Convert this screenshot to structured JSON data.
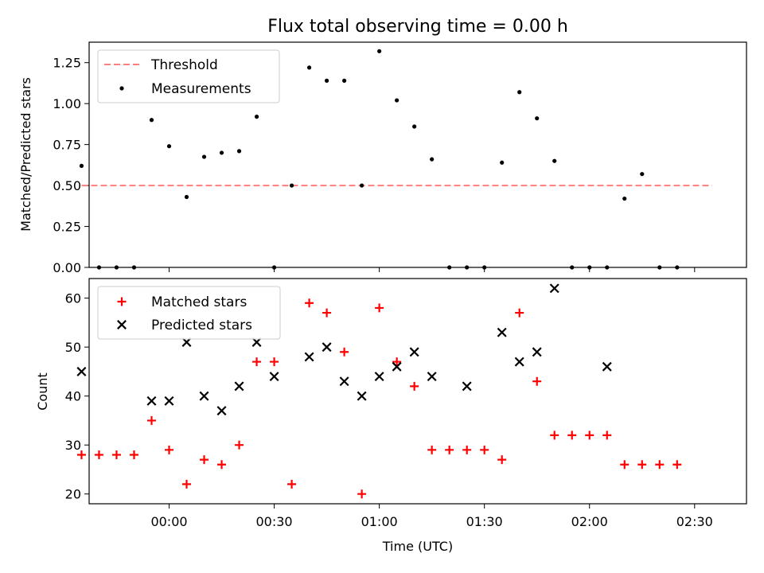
{
  "title": "Flux total observing time = 0.00 h",
  "chart_data": [
    {
      "type": "scatter",
      "ylabel": "Matched/Predicted stars",
      "ylim": [
        0,
        1.375
      ],
      "yticks": [
        "0.00",
        "0.25",
        "0.50",
        "0.75",
        "1.00",
        "1.25"
      ],
      "legend": {
        "placement": "upper-left",
        "entries": [
          "Threshold",
          "Measurements"
        ]
      },
      "threshold": {
        "name": "Threshold",
        "value": 0.5,
        "x_start": "23:35",
        "x_end": "02:35",
        "color": "#ff7f7f"
      },
      "series": [
        {
          "name": "Measurements",
          "marker": "dot",
          "color": "#000000",
          "x": [
            "23:35",
            "23:40",
            "23:45",
            "23:50",
            "23:55",
            "00:00",
            "00:05",
            "00:10",
            "00:15",
            "00:20",
            "00:25",
            "00:30",
            "00:35",
            "00:40",
            "00:45",
            "00:50",
            "00:55",
            "01:00",
            "01:05",
            "01:10",
            "01:15",
            "01:20",
            "01:25",
            "01:30",
            "01:35",
            "01:40",
            "01:45",
            "01:50",
            "01:55",
            "02:00",
            "02:05",
            "02:10",
            "02:15",
            "02:20",
            "02:25",
            "02:30",
            "02:35"
          ],
          "y": [
            0.62,
            0.0,
            0.0,
            0.0,
            0.9,
            0.74,
            0.43,
            0.675,
            0.7,
            0.71,
            0.92,
            0.0,
            0.5,
            1.22,
            1.14,
            1.14,
            0.5,
            1.32,
            1.02,
            0.86,
            0.66,
            0.0,
            0.0,
            0.0,
            0.64,
            1.07,
            0.91,
            0.65,
            0.0,
            0.0,
            0.0,
            0.42,
            0.57,
            0.0,
            0.0,
            null,
            null
          ]
        }
      ]
    },
    {
      "type": "scatter",
      "xlabel": "Time (UTC)",
      "ylabel": "Count",
      "ylim": [
        18,
        64
      ],
      "yticks": [
        "20",
        "30",
        "40",
        "50",
        "60"
      ],
      "xticks": [
        "00:00",
        "00:30",
        "01:00",
        "01:30",
        "02:00",
        "02:30"
      ],
      "legend": {
        "placement": "upper-left",
        "entries": [
          "Matched stars",
          "Predicted stars"
        ]
      },
      "series": [
        {
          "name": "Matched stars",
          "marker": "plus",
          "color": "#ff0000",
          "x": [
            "23:35",
            "23:40",
            "23:45",
            "23:50",
            "23:55",
            "00:00",
            "00:05",
            "00:10",
            "00:15",
            "00:20",
            "00:25",
            "00:30",
            "00:35",
            "00:40",
            "00:45",
            "00:50",
            "00:55",
            "01:00",
            "01:05",
            "01:10",
            "01:15",
            "01:20",
            "01:25",
            "01:30",
            "01:35",
            "01:40",
            "01:45",
            "01:50",
            "01:55",
            "02:00",
            "02:05",
            "02:10",
            "02:15",
            "02:20",
            "02:25",
            "02:30",
            "02:35"
          ],
          "y": [
            28,
            28,
            28,
            28,
            35,
            29,
            22,
            27,
            26,
            30,
            47,
            47,
            22,
            59,
            57,
            49,
            20,
            58,
            47,
            42,
            29,
            29,
            29,
            29,
            27,
            57,
            43,
            32,
            32,
            32,
            32,
            26,
            26,
            26,
            26,
            null,
            null
          ]
        },
        {
          "name": "Predicted stars",
          "marker": "x",
          "color": "#000000",
          "x": [
            "23:35",
            "23:55",
            "00:00",
            "00:05",
            "00:10",
            "00:15",
            "00:20",
            "00:25",
            "00:30",
            "00:40",
            "00:45",
            "00:50",
            "00:55",
            "01:00",
            "01:05",
            "01:10",
            "01:15",
            "01:25",
            "01:35",
            "01:40",
            "01:45",
            "01:50",
            "02:05",
            "02:10"
          ],
          "y": [
            45,
            39,
            39,
            51,
            40,
            37,
            42,
            51,
            44,
            48,
            50,
            43,
            40,
            44,
            46,
            49,
            44,
            42,
            53,
            47,
            49,
            62,
            46,
            null
          ]
        }
      ]
    }
  ]
}
